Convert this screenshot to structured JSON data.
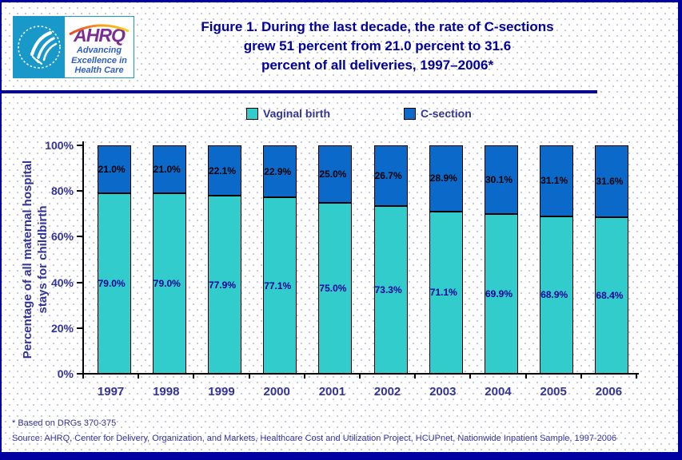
{
  "header": {
    "logo": {
      "acronym": "AHRQ",
      "tagline_line1": "Advancing",
      "tagline_line2": "Excellence in",
      "tagline_line3": "Health Care"
    },
    "title_line1": "Figure 1. During the last decade, the rate of C-sections",
    "title_line2": "grew 51 percent from 21.0 percent to 31.6",
    "title_line3": "percent of all deliveries, 1997–2006*"
  },
  "chart_data": {
    "type": "bar",
    "stacked": true,
    "title": "Figure 1. During the last decade, the rate of C-sections grew 51 percent from 21.0 percent to 31.6 percent of all deliveries, 1997–2006*",
    "categories": [
      "1997",
      "1998",
      "1999",
      "2000",
      "2001",
      "2002",
      "2003",
      "2004",
      "2005",
      "2006"
    ],
    "series": [
      {
        "name": "Vaginal birth",
        "color": "#33CCCC",
        "label_color": "#000099",
        "values": [
          79.0,
          79.0,
          77.9,
          77.1,
          75.0,
          73.3,
          71.1,
          69.9,
          68.9,
          68.4
        ]
      },
      {
        "name": "C-section",
        "color": "#0B69CA",
        "label_color": "#000000",
        "values": [
          21.0,
          21.0,
          22.1,
          22.9,
          25.0,
          26.7,
          28.9,
          30.1,
          31.1,
          31.6
        ]
      }
    ],
    "ylabel_line1": "Percentage of all maternal hospital",
    "ylabel_line2": "stays for childbirth",
    "xlabel": "",
    "y_ticks": [
      "0%",
      "20%",
      "40%",
      "60%",
      "80%",
      "100%"
    ],
    "ylim": [
      0,
      100
    ],
    "grid": false,
    "legend_position": "top"
  },
  "footer": {
    "note": "* Based on DRGs 370-375",
    "source": "Source: AHRQ, Center for Delivery, Organization, and Markets, Healthcare Cost and Utilization Project, HCUPnet, Nationwide Inpatient Sample, 1997-2006"
  },
  "colors": {
    "page_border": "#0000A0",
    "title_text": "#000099",
    "axis_text": "#333399",
    "vaginal_bar": "#33CCCC",
    "csection_bar": "#0B69CA"
  }
}
